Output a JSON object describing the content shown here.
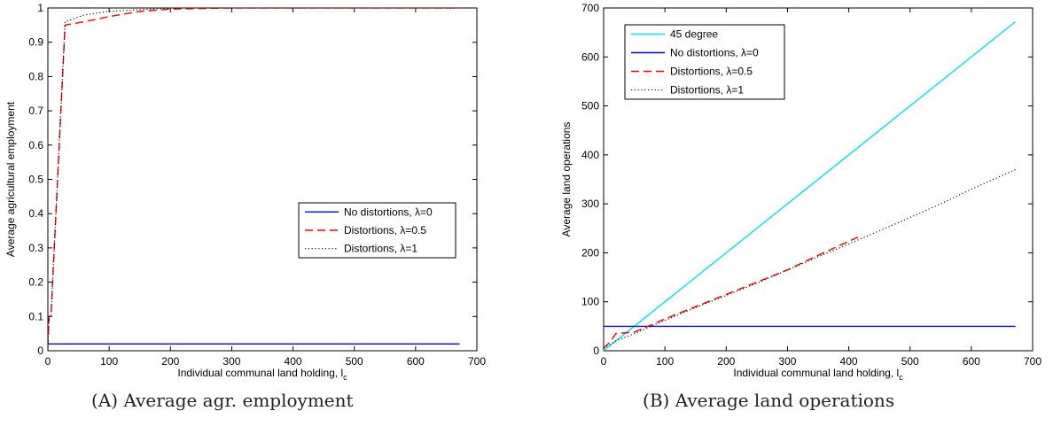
{
  "chart_data": [
    {
      "type": "line",
      "panel_label": "A",
      "caption": "Average agr. employment",
      "xlabel": "Individual communal land holding, l",
      "xlabel_subscript": "c",
      "ylabel": "Average agricultural employment",
      "xlim": [
        0,
        700
      ],
      "ylim": [
        0,
        1
      ],
      "xticks": [
        0,
        100,
        200,
        300,
        400,
        500,
        600,
        700
      ],
      "yticks": [
        0,
        0.1,
        0.2,
        0.3,
        0.4,
        0.5,
        0.6,
        0.7,
        0.8,
        0.9,
        1
      ],
      "grid": false,
      "legend_position": "center-right",
      "series": [
        {
          "name": "No distortions, λ=0",
          "color": "#0000ff",
          "style": "solid",
          "x": [
            0,
            672
          ],
          "y": [
            0.02,
            0.02
          ]
        },
        {
          "name": "Distortions, λ=0.5",
          "color": "#ff0000",
          "style": "dashed",
          "x": [
            0,
            2,
            5,
            28,
            60,
            100,
            150,
            200,
            300,
            400,
            500,
            600,
            672
          ],
          "y": [
            0.01,
            0.1,
            0.1,
            0.95,
            0.96,
            0.975,
            0.99,
            0.997,
            1.0,
            1.0,
            1.0,
            1.0,
            1.0
          ]
        },
        {
          "name": "Distortions, λ=1",
          "color": "#000000",
          "style": "dotted",
          "x": [
            0,
            2,
            5,
            28,
            60,
            100,
            150,
            200,
            300,
            400,
            500,
            600,
            672
          ],
          "y": [
            0.01,
            0.1,
            0.1,
            0.96,
            0.98,
            0.99,
            0.995,
            1.0,
            1.0,
            1.0,
            1.0,
            1.0,
            1.0
          ]
        }
      ]
    },
    {
      "type": "line",
      "panel_label": "B",
      "caption": "Average land operations",
      "xlabel": "Individual communal land holding, l",
      "xlabel_subscript": "c",
      "ylabel": "Average land operations",
      "xlim": [
        0,
        700
      ],
      "ylim": [
        0,
        700
      ],
      "xticks": [
        0,
        100,
        200,
        300,
        400,
        500,
        600,
        700
      ],
      "yticks": [
        0,
        100,
        200,
        300,
        400,
        500,
        600,
        700
      ],
      "grid": false,
      "legend_position": "top-left",
      "series": [
        {
          "name": "45 degree",
          "color": "#00e5e5",
          "style": "solid",
          "x": [
            0,
            672
          ],
          "y": [
            0,
            672
          ]
        },
        {
          "name": "No distortions, λ=0",
          "color": "#0000ff",
          "style": "solid",
          "x": [
            0,
            672
          ],
          "y": [
            50,
            50
          ]
        },
        {
          "name": "Distortions, λ=0.5",
          "color": "#ff0000",
          "style": "dashed",
          "x": [
            0,
            12,
            20,
            50,
            100,
            150,
            200,
            250,
            300,
            350,
            415
          ],
          "y": [
            5,
            20,
            35,
            38,
            65,
            90,
            115,
            140,
            165,
            195,
            232
          ]
        },
        {
          "name": "Distortions, λ=1",
          "color": "#000000",
          "style": "dotted",
          "x": [
            0,
            20,
            50,
            100,
            150,
            200,
            250,
            300,
            350,
            400,
            450,
            500,
            550,
            600,
            672
          ],
          "y": [
            5,
            20,
            35,
            62,
            88,
            113,
            138,
            165,
            192,
            218,
            245,
            272,
            300,
            330,
            370
          ]
        }
      ]
    }
  ]
}
